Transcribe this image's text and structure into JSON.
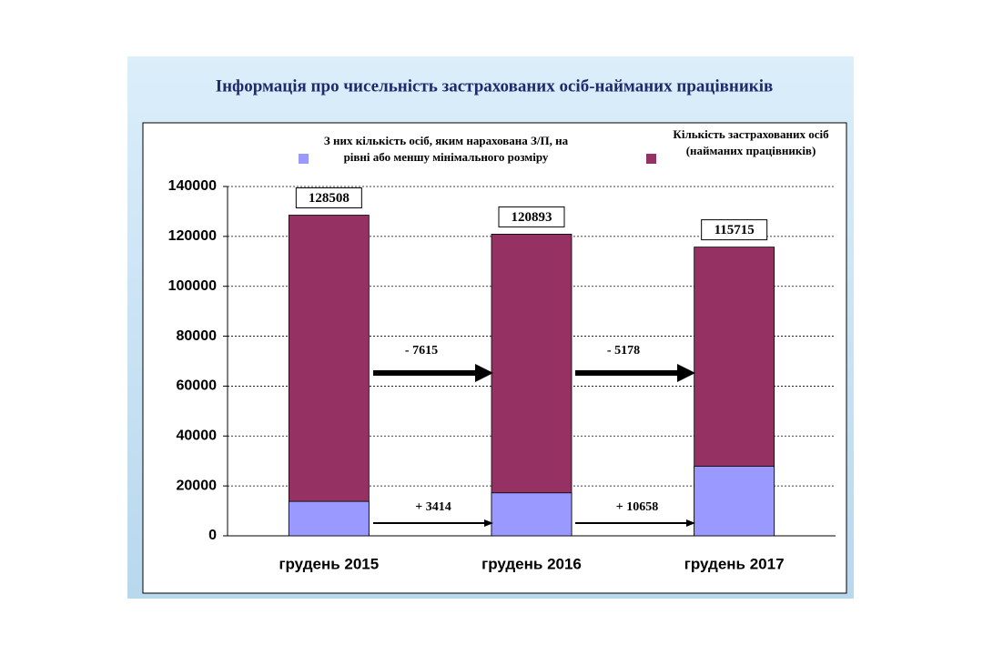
{
  "chart_data": {
    "type": "bar",
    "title": "Інформація про чисельність застрахованих осіб-найманих працівників",
    "categories": [
      "грудень 2015",
      "грудень 2016",
      "грудень 2017"
    ],
    "series": [
      {
        "name": "Кількість застрахованих осіб (найманих працівників)",
        "color": "#953163",
        "values": [
          128508,
          120893,
          115715
        ]
      },
      {
        "name": "З них кількість осіб, яким нарахована З/П, на рівні або меншу мінімального розміру",
        "color": "#9999ff",
        "values": [
          13800,
          17214,
          27872
        ]
      }
    ],
    "annotations": [
      "- 7615",
      "- 5178",
      "+ 3414",
      "+ 10658"
    ],
    "ylim": [
      0,
      140000
    ],
    "yticks": [
      0,
      20000,
      40000,
      60000,
      80000,
      100000,
      120000,
      140000
    ],
    "grid": true
  }
}
